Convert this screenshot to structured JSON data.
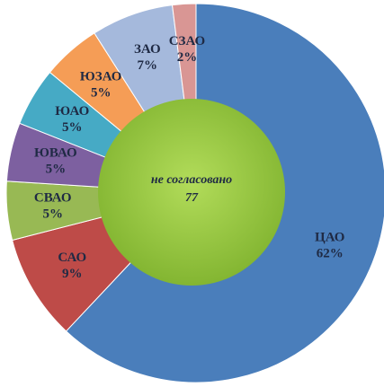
{
  "chart_data": {
    "type": "donut",
    "categories": [
      "ЦАО",
      "САО",
      "СВАО",
      "ЮВАО",
      "ЮАО",
      "ЮЗАО",
      "ЗАО",
      "СЗАО"
    ],
    "values": [
      62,
      9,
      5,
      5,
      5,
      5,
      7,
      2
    ],
    "value_labels": [
      "62%",
      "9%",
      "5%",
      "5%",
      "5%",
      "5%",
      "7%",
      "2%"
    ],
    "colors": [
      "#4a7ebb",
      "#be4b48",
      "#98b954",
      "#7d60a0",
      "#46aac5",
      "#f59d56",
      "#a5b9dc",
      "#d99694"
    ],
    "center_label": "не согласовано",
    "center_value": 77
  }
}
